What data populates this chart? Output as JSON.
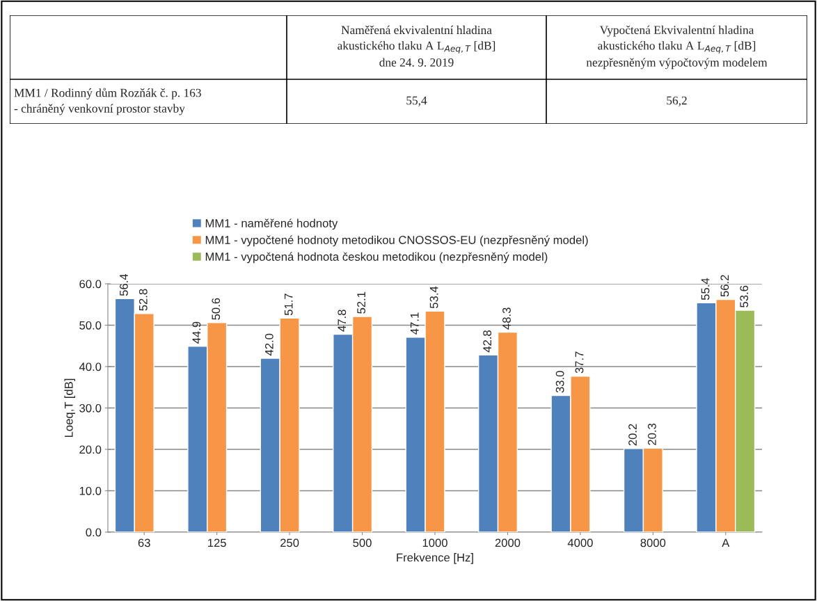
{
  "chart_data": [
    {
      "type": "other",
      "annotations": [
        "Naměřená ekvivalentní hladina akustického tlaku A L$_{Aeq,T}$ [dB] dne 24. 9. 2019",
        "Vypočtená Ekvivalentní hladina akustického tlaku A L$_{Aeq,T}$ [dB] nezpřesněným výpočtovým modelem",
        "MM1 / Rodinný dům Rozňák č. p. 163 - chráněný venkovní prostor stavby",
        "55,4",
        "56,2"
      ]
    },
    {
      "type": "bar",
      "xlabel": "Frekvence [Hz]",
      "ylabel": "Loeq,T [dB]",
      "categories": [
        "63",
        "125",
        "250",
        "500",
        "1000",
        "2000",
        "4000",
        "8000",
        "A"
      ],
      "series": [
        {
          "name": "MM1 - naměřené hodnoty",
          "color": "#4f81bd",
          "values": [
            56.4,
            44.9,
            42.0,
            47.8,
            47.1,
            42.8,
            33.0,
            20.2,
            55.4
          ],
          "value_labels": [
            "56.4",
            "44.9",
            "42.0",
            "47.8",
            "47.1",
            "42.8",
            "33.0",
            "20.2",
            "55.4"
          ]
        },
        {
          "name": "MM1 - vypočtené hodnoty metodikou CNOSSOS-EU (nezpřesněný model)",
          "color": "#f79646",
          "values": [
            52.8,
            50.6,
            51.7,
            52.1,
            53.4,
            48.3,
            37.7,
            20.3,
            56.2
          ],
          "value_labels": [
            "52.8",
            "50.6",
            "51.7",
            "52.1",
            "53.4",
            "48.3",
            "37.7",
            "20.3",
            "56.2"
          ]
        },
        {
          "name": "MM1 - vypočtená hodnota českou metodikou (nezpřesněný model)",
          "color": "#9bbb59",
          "values": [
            null,
            null,
            null,
            null,
            null,
            null,
            null,
            null,
            53.6
          ],
          "value_labels": [
            null,
            null,
            null,
            null,
            null,
            null,
            null,
            null,
            "53.6"
          ]
        }
      ],
      "ylim": [
        0,
        60
      ],
      "yticks": [
        {
          "value": 0,
          "label": "0.0"
        },
        {
          "value": 10,
          "label": "10.0"
        },
        {
          "value": 20,
          "label": "20.0"
        },
        {
          "value": 30,
          "label": "30.0"
        },
        {
          "value": 40,
          "label": "40.0"
        },
        {
          "value": 50,
          "label": "50.0"
        },
        {
          "value": 60,
          "label": "60.0"
        }
      ],
      "grid": "y",
      "legend": "top"
    }
  ]
}
